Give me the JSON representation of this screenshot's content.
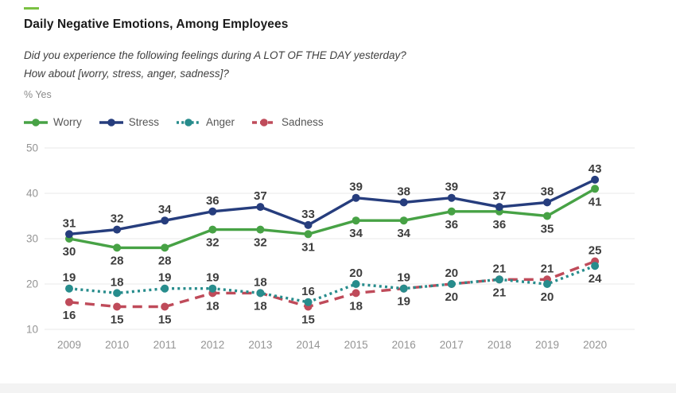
{
  "page": {
    "title": "Daily Negative Emotions, Among Employees",
    "subtitle_line1": "Did you experience the following feelings during A LOT OF THE DAY yesterday?",
    "subtitle_line2": "How about [worry, stress, anger, sadness]?",
    "unit_label": "% Yes",
    "accent_color": "#7ac142"
  },
  "chart_data": {
    "type": "line",
    "title": "Daily Negative Emotions, Among Employees",
    "ylabel": "% Yes",
    "xlabel": "",
    "ylim": [
      10,
      50
    ],
    "yticks": [
      50,
      40,
      30,
      20,
      10
    ],
    "grid": true,
    "legend_position": "top-left",
    "categories": [
      "2009",
      "2010",
      "2011",
      "2012",
      "2013",
      "2014",
      "2015",
      "2016",
      "2017",
      "2018",
      "2019",
      "2020"
    ],
    "series": [
      {
        "name": "Worry",
        "color": "#47a245",
        "line_style": "solid",
        "label_side": "below",
        "values": [
          30,
          28,
          28,
          32,
          32,
          31,
          34,
          34,
          36,
          36,
          35,
          41
        ]
      },
      {
        "name": "Stress",
        "color": "#263d7d",
        "line_style": "solid",
        "label_side": "above",
        "values": [
          31,
          32,
          34,
          36,
          37,
          33,
          39,
          38,
          39,
          37,
          38,
          43
        ]
      },
      {
        "name": "Anger",
        "color": "#278c8c",
        "line_style": "dotted",
        "label_side": "auto",
        "values": [
          19,
          18,
          19,
          19,
          18,
          16,
          20,
          19,
          20,
          21,
          20,
          24
        ]
      },
      {
        "name": "Sadness",
        "color": "#bf4b5a",
        "line_style": "dashed",
        "label_side": "auto",
        "values": [
          16,
          15,
          15,
          18,
          18,
          15,
          18,
          19,
          20,
          21,
          21,
          25
        ]
      }
    ],
    "style": {
      "grid_color": "#e9e9e9",
      "axis_label_color": "#949494",
      "data_label_color": "#3d3d3d"
    }
  }
}
